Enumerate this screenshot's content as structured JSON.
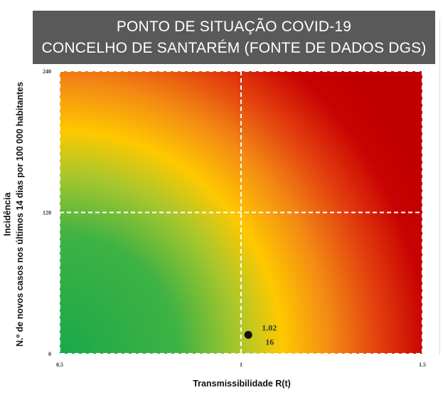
{
  "title": {
    "line1": "PONTO DE SITUAÇÃO COVID-19",
    "line2": "CONCELHO DE SANTARÉM (FONTE DE DADOS DGS)"
  },
  "colors": {
    "title_bg": "#595959",
    "title_text": "#ffffff",
    "zone_green": "#1aa84a",
    "zone_yellow": "#ffc800",
    "zone_red": "#c00000",
    "threshold_line": "#ffffff",
    "point": "#111111"
  },
  "chart_data": {
    "type": "scatter",
    "xlabel": "Transmissibilidade R(t)",
    "ylabel_line1": "Incidência",
    "ylabel_line2": "N.º de novos casos nos últimos 14 dias por 100 000 habitantes",
    "xlim": [
      0.5,
      1.5
    ],
    "ylim": [
      0,
      240
    ],
    "x_ticks": [
      "0.5",
      "1",
      "1.5"
    ],
    "y_ticks": [
      "0",
      "120",
      "240"
    ],
    "x_tick_values": [
      0.5,
      1,
      1.5
    ],
    "y_tick_values": [
      0,
      120,
      240
    ],
    "thresholds": {
      "x": 1,
      "y": 120
    },
    "background": "risk-gradient green-yellow-red",
    "points": [
      {
        "x": 1.02,
        "y": 16,
        "label_x": "1.02",
        "label_y": "16"
      }
    ]
  }
}
